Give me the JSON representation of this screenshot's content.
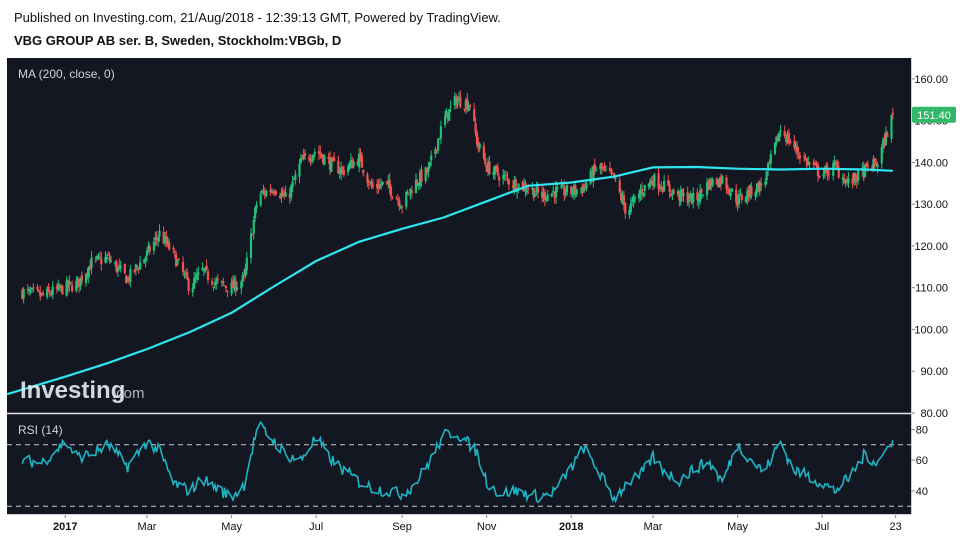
{
  "header": {
    "published": "Published on Investing.com, 21/Aug/2018 - 12:39:13 GMT, Powered by TradingView.",
    "instrument": "VBG GROUP AB ser. B, Sweden, Stockholm:VBGb, D"
  },
  "watermark": {
    "brand": "Investing",
    "suffix": ".com"
  },
  "colors": {
    "background": "#131722",
    "up": "#26a69a",
    "up_candle": "#21c07a",
    "down": "#ef5350",
    "ma_line": "#2ee6f0",
    "rsi_line": "#1fb4c4",
    "last_price_badge": "#2fb866",
    "axis_text": "#111111"
  },
  "chart_data": [
    {
      "type": "candlestick",
      "title": "MA (200, close, 0)",
      "ylim": [
        80,
        165
      ],
      "yticks": [
        "160.00",
        "150.00",
        "140.00",
        "130.00",
        "120.00",
        "110.00",
        "100.00",
        "90.00",
        "80.00"
      ],
      "last_price": "151.40",
      "xticks": [
        "2017",
        "Mar",
        "May",
        "Jul",
        "Sep",
        "Nov",
        "2018",
        "Mar",
        "May",
        "Jul",
        "23"
      ],
      "close_series": {
        "dates": [
          "2016-12-01",
          "2016-12-15",
          "2017-01-01",
          "2017-01-10",
          "2017-01-20",
          "2017-02-01",
          "2017-02-15",
          "2017-03-01",
          "2017-03-10",
          "2017-03-20",
          "2017-04-01",
          "2017-04-10",
          "2017-04-20",
          "2017-05-01",
          "2017-05-10",
          "2017-05-20",
          "2017-06-01",
          "2017-06-10",
          "2017-06-20",
          "2017-07-01",
          "2017-07-10",
          "2017-07-20",
          "2017-08-01",
          "2017-08-10",
          "2017-08-20",
          "2017-09-01",
          "2017-09-10",
          "2017-09-20",
          "2017-10-01",
          "2017-10-10",
          "2017-10-20",
          "2017-10-25",
          "2017-11-01",
          "2017-11-10",
          "2017-11-20",
          "2017-12-01",
          "2017-12-10",
          "2017-12-20",
          "2018-01-01",
          "2018-01-10",
          "2018-01-20",
          "2018-02-01",
          "2018-02-10",
          "2018-02-20",
          "2018-03-01",
          "2018-03-10",
          "2018-03-20",
          "2018-04-01",
          "2018-04-10",
          "2018-04-20",
          "2018-05-01",
          "2018-05-10",
          "2018-05-20",
          "2018-06-01",
          "2018-06-10",
          "2018-06-20",
          "2018-07-01",
          "2018-07-10",
          "2018-07-20",
          "2018-08-01",
          "2018-08-10",
          "2018-08-21"
        ],
        "close": [
          109,
          108,
          110,
          111,
          116,
          117,
          112,
          118,
          123,
          118,
          110,
          114,
          111,
          110,
          112,
          132,
          134,
          131,
          140,
          143,
          140,
          138,
          141,
          134,
          135,
          130,
          135,
          138,
          150,
          155,
          154,
          145,
          139,
          137,
          135,
          134,
          132,
          133,
          133,
          134,
          139,
          136,
          128,
          133,
          136,
          134,
          132,
          131,
          135,
          136,
          131,
          133,
          135,
          148,
          144,
          140,
          137,
          139,
          135,
          138,
          140,
          151.4
        ]
      },
      "ma_series": {
        "name": "MA (200, close, 0)",
        "dates": [
          "2016-11-20",
          "2017-01-01",
          "2017-02-01",
          "2017-03-01",
          "2017-04-01",
          "2017-05-01",
          "2017-06-01",
          "2017-07-01",
          "2017-08-01",
          "2017-09-01",
          "2017-10-01",
          "2017-11-01",
          "2017-12-01",
          "2018-01-01",
          "2018-02-01",
          "2018-03-01",
          "2018-04-01",
          "2018-05-01",
          "2018-06-01",
          "2018-07-01",
          "2018-08-01",
          "2018-08-21"
        ],
        "values": [
          84.5,
          88.7,
          92.0,
          95.3,
          99.4,
          104.0,
          110.4,
          116.4,
          121.0,
          124.1,
          126.8,
          130.7,
          134.4,
          135.2,
          136.6,
          138.8,
          138.9,
          138.5,
          138.3,
          138.5,
          138.3,
          138.0
        ]
      }
    },
    {
      "type": "line",
      "title": "RSI (14)",
      "ylim": [
        25,
        90
      ],
      "yticks": [
        "80",
        "60",
        "40"
      ],
      "reference_lines": [
        70,
        30
      ],
      "series": [
        {
          "dates": [
            "2016-12-01",
            "2016-12-15",
            "2017-01-01",
            "2017-01-10",
            "2017-01-20",
            "2017-02-01",
            "2017-02-15",
            "2017-03-01",
            "2017-03-10",
            "2017-03-20",
            "2017-04-01",
            "2017-04-10",
            "2017-04-20",
            "2017-05-01",
            "2017-05-10",
            "2017-05-20",
            "2017-06-01",
            "2017-06-10",
            "2017-06-20",
            "2017-07-01",
            "2017-07-10",
            "2017-07-20",
            "2017-08-01",
            "2017-08-10",
            "2017-08-20",
            "2017-09-01",
            "2017-09-10",
            "2017-09-20",
            "2017-10-01",
            "2017-10-10",
            "2017-10-20",
            "2017-10-25",
            "2017-11-01",
            "2017-11-10",
            "2017-11-20",
            "2017-12-01",
            "2017-12-10",
            "2017-12-20",
            "2018-01-01",
            "2018-01-10",
            "2018-01-20",
            "2018-02-01",
            "2018-02-10",
            "2018-02-20",
            "2018-03-01",
            "2018-03-10",
            "2018-03-20",
            "2018-04-01",
            "2018-04-10",
            "2018-04-20",
            "2018-05-01",
            "2018-05-10",
            "2018-05-20",
            "2018-06-01",
            "2018-06-10",
            "2018-06-20",
            "2018-07-01",
            "2018-07-10",
            "2018-07-20",
            "2018-08-01",
            "2018-08-10",
            "2018-08-21"
          ],
          "values": [
            60,
            58,
            72,
            62,
            64,
            70,
            56,
            72,
            66,
            45,
            40,
            48,
            42,
            36,
            44,
            83,
            72,
            63,
            60,
            75,
            62,
            54,
            46,
            42,
            40,
            38,
            44,
            58,
            76,
            78,
            70,
            65,
            46,
            38,
            40,
            38,
            36,
            40,
            55,
            68,
            54,
            35,
            45,
            50,
            62,
            52,
            47,
            55,
            59,
            46,
            70,
            61,
            52,
            72,
            54,
            50,
            45,
            40,
            48,
            64,
            58,
            73
          ]
        }
      ]
    }
  ]
}
